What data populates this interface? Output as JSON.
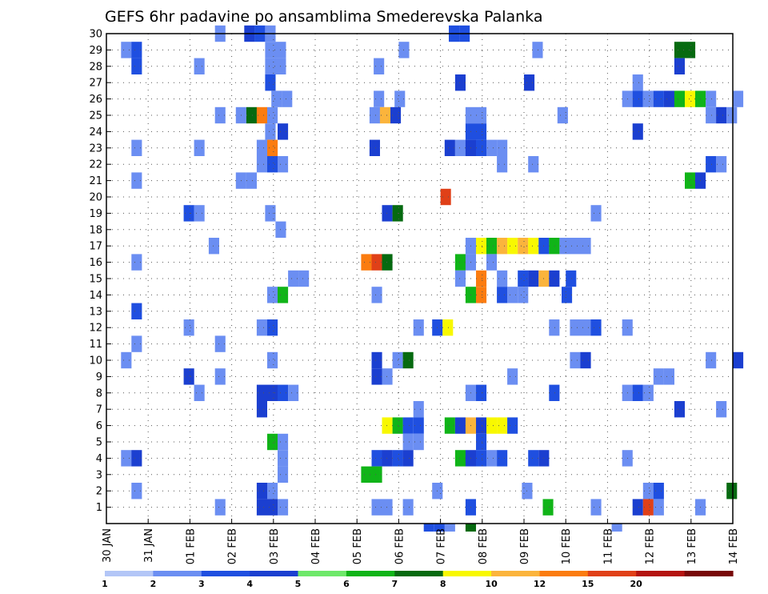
{
  "chart_data": {
    "type": "heatmap",
    "title": "GEFS 6hr padavine po ansamblima Smederevska Palanka",
    "xlabel": "",
    "ylabel": "",
    "x_tick_labels": [
      "30 JAN",
      "31 JAN",
      "01 FEB",
      "02 FEB",
      "03 FEB",
      "04 FEB",
      "05 FEB",
      "06 FEB",
      "07 FEB",
      "08 FEB",
      "09 FEB",
      "10 FEB",
      "11 FEB",
      "12 FEB",
      "13 FEB",
      "14 FEB"
    ],
    "x_range": [
      0,
      15
    ],
    "y_tick_labels": [
      "1",
      "2",
      "3",
      "4",
      "5",
      "6",
      "7",
      "8",
      "9",
      "10",
      "11",
      "12",
      "13",
      "14",
      "15",
      "16",
      "17",
      "18",
      "19",
      "20",
      "21",
      "22",
      "23",
      "24",
      "25",
      "26",
      "27",
      "28",
      "29",
      "30"
    ],
    "y_range": [
      0,
      30
    ],
    "grid": true,
    "colorbar": {
      "labels": [
        "1",
        "2",
        "3",
        "4",
        "5",
        "6",
        "7",
        "8",
        "10",
        "12",
        "15",
        "20"
      ],
      "colors": [
        "#b3c6f7",
        "#6b8ef2",
        "#1f4fe0",
        "#1b3fd0",
        "#6ee86a",
        "#10b418",
        "#066a10",
        "#f8f800",
        "#fbb43c",
        "#fb7c10",
        "#e04018",
        "#b41410",
        "#780808"
      ]
    },
    "cells": [
      [
        30,
        2.6,
        1
      ],
      [
        30,
        3.3,
        3
      ],
      [
        30,
        3.55,
        2
      ],
      [
        30,
        3.8,
        1
      ],
      [
        30,
        8.2,
        2
      ],
      [
        30,
        8.45,
        2
      ],
      [
        29,
        0.35,
        1
      ],
      [
        29,
        0.6,
        2
      ],
      [
        29,
        3.8,
        1
      ],
      [
        29,
        4.05,
        1
      ],
      [
        29,
        7.0,
        1
      ],
      [
        29,
        10.2,
        1
      ],
      [
        29,
        13.6,
        6
      ],
      [
        29,
        13.85,
        6
      ],
      [
        28,
        0.6,
        2
      ],
      [
        28,
        2.1,
        1
      ],
      [
        28,
        3.8,
        1
      ],
      [
        28,
        4.05,
        1
      ],
      [
        28,
        6.4,
        1
      ],
      [
        28,
        13.6,
        3
      ],
      [
        27,
        3.8,
        2
      ],
      [
        27,
        8.35,
        3
      ],
      [
        27,
        10.0,
        3
      ],
      [
        27,
        12.6,
        1
      ],
      [
        26,
        3.95,
        1
      ],
      [
        26,
        4.2,
        1
      ],
      [
        26,
        6.4,
        1
      ],
      [
        26,
        6.9,
        1
      ],
      [
        26,
        12.35,
        1
      ],
      [
        26,
        12.6,
        2
      ],
      [
        26,
        12.85,
        1
      ],
      [
        26,
        13.1,
        2
      ],
      [
        26,
        13.35,
        3
      ],
      [
        26,
        13.6,
        5
      ],
      [
        26,
        13.85,
        7
      ],
      [
        26,
        14.1,
        5
      ],
      [
        26,
        14.35,
        1
      ],
      [
        26,
        15.0,
        1
      ],
      [
        25,
        2.6,
        1
      ],
      [
        25,
        3.1,
        1
      ],
      [
        25,
        3.35,
        6
      ],
      [
        25,
        3.6,
        9
      ],
      [
        25,
        3.85,
        1
      ],
      [
        25,
        6.3,
        1
      ],
      [
        25,
        6.55,
        8
      ],
      [
        25,
        6.8,
        3
      ],
      [
        25,
        8.6,
        1
      ],
      [
        25,
        8.85,
        1
      ],
      [
        25,
        10.8,
        1
      ],
      [
        25,
        14.35,
        1
      ],
      [
        25,
        14.6,
        3
      ],
      [
        25,
        14.85,
        1
      ],
      [
        24,
        3.8,
        1
      ],
      [
        24,
        4.1,
        3
      ],
      [
        24,
        8.6,
        2
      ],
      [
        24,
        8.85,
        2
      ],
      [
        24,
        12.6,
        3
      ],
      [
        23,
        0.6,
        1
      ],
      [
        23,
        2.1,
        1
      ],
      [
        23,
        3.6,
        1
      ],
      [
        23,
        3.85,
        9
      ],
      [
        23,
        6.3,
        3
      ],
      [
        23,
        8.1,
        3
      ],
      [
        23,
        8.35,
        1
      ],
      [
        23,
        8.6,
        3
      ],
      [
        23,
        8.85,
        2
      ],
      [
        23,
        9.1,
        1
      ],
      [
        23,
        9.35,
        1
      ],
      [
        22,
        3.6,
        1
      ],
      [
        22,
        3.85,
        2
      ],
      [
        22,
        4.1,
        1
      ],
      [
        22,
        9.35,
        1
      ],
      [
        22,
        10.1,
        1
      ],
      [
        22,
        14.35,
        2
      ],
      [
        22,
        14.6,
        1
      ],
      [
        21,
        0.6,
        1
      ],
      [
        21,
        3.1,
        1
      ],
      [
        21,
        3.35,
        1
      ],
      [
        21,
        13.85,
        5
      ],
      [
        21,
        14.1,
        3
      ],
      [
        20,
        8.0,
        10
      ],
      [
        19,
        1.85,
        2
      ],
      [
        19,
        2.1,
        1
      ],
      [
        19,
        3.8,
        1
      ],
      [
        19,
        6.6,
        3
      ],
      [
        19,
        6.85,
        6
      ],
      [
        19,
        11.6,
        1
      ],
      [
        18,
        4.05,
        1
      ],
      [
        17,
        2.45,
        1
      ],
      [
        17,
        8.6,
        1
      ],
      [
        17,
        8.85,
        7
      ],
      [
        17,
        9.1,
        5
      ],
      [
        17,
        9.35,
        8
      ],
      [
        17,
        9.6,
        7
      ],
      [
        17,
        9.85,
        8
      ],
      [
        17,
        10.1,
        7
      ],
      [
        17,
        10.35,
        2
      ],
      [
        17,
        10.6,
        5
      ],
      [
        17,
        10.85,
        1
      ],
      [
        17,
        11.1,
        1
      ],
      [
        17,
        11.35,
        1
      ],
      [
        16,
        0.6,
        1
      ],
      [
        16,
        6.1,
        9
      ],
      [
        16,
        6.35,
        10
      ],
      [
        16,
        6.6,
        6
      ],
      [
        16,
        8.35,
        5
      ],
      [
        16,
        8.6,
        1
      ],
      [
        16,
        9.1,
        1
      ],
      [
        15,
        4.35,
        1
      ],
      [
        15,
        4.6,
        1
      ],
      [
        15,
        8.35,
        1
      ],
      [
        15,
        8.85,
        9
      ],
      [
        15,
        9.35,
        1
      ],
      [
        15,
        9.85,
        2
      ],
      [
        15,
        10.1,
        3
      ],
      [
        15,
        10.35,
        8
      ],
      [
        15,
        10.6,
        3
      ],
      [
        15,
        11.0,
        2
      ],
      [
        14,
        3.85,
        1
      ],
      [
        14,
        4.1,
        5
      ],
      [
        14,
        6.35,
        1
      ],
      [
        14,
        8.6,
        5
      ],
      [
        14,
        8.85,
        9
      ],
      [
        14,
        9.35,
        2
      ],
      [
        14,
        9.6,
        1
      ],
      [
        14,
        9.85,
        1
      ],
      [
        14,
        10.9,
        2
      ],
      [
        13,
        0.6,
        2
      ],
      [
        12,
        1.85,
        1
      ],
      [
        12,
        3.6,
        1
      ],
      [
        12,
        3.85,
        2
      ],
      [
        12,
        7.35,
        1
      ],
      [
        12,
        7.8,
        2
      ],
      [
        12,
        8.05,
        7
      ],
      [
        12,
        10.6,
        1
      ],
      [
        12,
        11.1,
        1
      ],
      [
        12,
        11.35,
        1
      ],
      [
        12,
        11.6,
        2
      ],
      [
        12,
        12.35,
        1
      ],
      [
        11,
        0.6,
        1
      ],
      [
        11,
        2.6,
        1
      ],
      [
        10,
        0.35,
        1
      ],
      [
        10,
        3.85,
        1
      ],
      [
        10,
        6.35,
        3
      ],
      [
        10,
        6.85,
        1
      ],
      [
        10,
        7.1,
        6
      ],
      [
        10,
        11.1,
        1
      ],
      [
        10,
        11.35,
        3
      ],
      [
        10,
        14.35,
        1
      ],
      [
        10,
        15.0,
        3
      ],
      [
        9,
        1.85,
        3
      ],
      [
        9,
        2.6,
        1
      ],
      [
        9,
        6.35,
        3
      ],
      [
        9,
        6.6,
        1
      ],
      [
        9,
        9.6,
        1
      ],
      [
        9,
        13.1,
        1
      ],
      [
        9,
        13.35,
        1
      ],
      [
        8,
        2.1,
        1
      ],
      [
        8,
        3.6,
        3
      ],
      [
        8,
        3.85,
        3
      ],
      [
        8,
        4.1,
        2
      ],
      [
        8,
        4.35,
        1
      ],
      [
        8,
        8.6,
        1
      ],
      [
        8,
        8.85,
        2
      ],
      [
        8,
        10.6,
        2
      ],
      [
        8,
        12.35,
        1
      ],
      [
        8,
        12.6,
        2
      ],
      [
        8,
        12.85,
        1
      ],
      [
        7,
        3.6,
        3
      ],
      [
        7,
        7.35,
        1
      ],
      [
        7,
        13.6,
        3
      ],
      [
        7,
        14.6,
        1
      ],
      [
        6,
        6.6,
        7
      ],
      [
        6,
        6.85,
        5
      ],
      [
        6,
        7.1,
        2
      ],
      [
        6,
        7.35,
        2
      ],
      [
        6,
        8.1,
        5
      ],
      [
        6,
        8.35,
        3
      ],
      [
        6,
        8.6,
        8
      ],
      [
        6,
        8.85,
        3
      ],
      [
        6,
        9.1,
        7
      ],
      [
        6,
        9.35,
        7
      ],
      [
        6,
        9.6,
        2
      ],
      [
        5,
        3.85,
        5
      ],
      [
        5,
        4.1,
        1
      ],
      [
        5,
        7.1,
        1
      ],
      [
        5,
        7.35,
        1
      ],
      [
        5,
        8.85,
        2
      ],
      [
        4,
        0.35,
        1
      ],
      [
        4,
        0.6,
        3
      ],
      [
        4,
        4.1,
        1
      ],
      [
        4,
        6.35,
        2
      ],
      [
        4,
        6.6,
        3
      ],
      [
        4,
        6.85,
        2
      ],
      [
        4,
        7.1,
        3
      ],
      [
        4,
        8.35,
        5
      ],
      [
        4,
        8.6,
        3
      ],
      [
        4,
        8.85,
        2
      ],
      [
        4,
        9.1,
        1
      ],
      [
        4,
        9.35,
        2
      ],
      [
        4,
        10.1,
        2
      ],
      [
        4,
        10.35,
        3
      ],
      [
        4,
        12.35,
        1
      ],
      [
        3,
        4.1,
        1
      ],
      [
        3,
        6.1,
        5
      ],
      [
        3,
        6.35,
        5
      ],
      [
        2,
        0.6,
        1
      ],
      [
        2,
        3.85,
        1
      ],
      [
        2,
        7.8,
        1
      ],
      [
        2,
        9.95,
        1
      ],
      [
        2,
        12.85,
        1
      ],
      [
        2,
        13.1,
        2
      ],
      [
        2,
        14.85,
        6
      ],
      [
        1,
        2.6,
        1
      ],
      [
        2,
        3.6,
        3
      ],
      [
        1,
        3.6,
        3
      ],
      [
        1,
        3.85,
        3
      ],
      [
        1,
        4.1,
        1
      ],
      [
        1,
        6.35,
        1
      ],
      [
        1,
        6.6,
        1
      ],
      [
        1,
        7.1,
        1
      ],
      [
        1,
        8.6,
        2
      ],
      [
        1,
        10.45,
        5
      ],
      [
        1,
        11.6,
        1
      ],
      [
        1,
        12.6,
        3
      ],
      [
        1,
        12.85,
        10
      ],
      [
        1,
        13.1,
        1
      ],
      [
        1,
        14.1,
        1
      ],
      [
        0,
        7.6,
        2
      ],
      [
        0,
        7.85,
        2
      ],
      [
        0,
        8.1,
        1
      ],
      [
        0,
        8.6,
        6
      ],
      [
        0,
        12.1,
        1
      ]
    ]
  }
}
